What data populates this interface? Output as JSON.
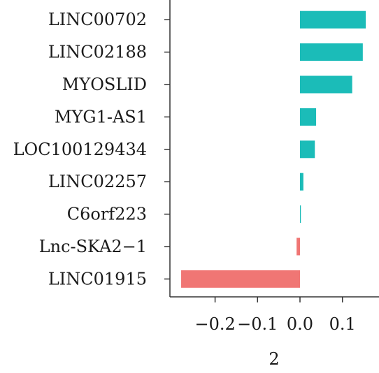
{
  "chart_data": {
    "type": "bar",
    "orientation": "horizontal",
    "categories": [
      "LINC00702",
      "LINC02188",
      "MYOSLID",
      "MYG1-AS1",
      "LOC100129434",
      "LINC02257",
      "C6orf223",
      "Lnc-SKA2−1",
      "LINC01915"
    ],
    "values": [
      0.155,
      0.148,
      0.123,
      0.038,
      0.035,
      0.008,
      0.002,
      -0.008,
      -0.28
    ],
    "xlabel": "2",
    "xticks": [
      -0.2,
      -0.1,
      0.0,
      0.1
    ],
    "xtick_labels": [
      "−0.2",
      "−0.1",
      "0.0",
      "0.1"
    ],
    "xlim": [
      -0.3,
      0.18
    ],
    "grid": false,
    "legend": "none",
    "colors": {
      "positive": "#1bbcb8",
      "negative": "#f07674",
      "axis": "#333333",
      "text": "#1a1a1a"
    }
  }
}
